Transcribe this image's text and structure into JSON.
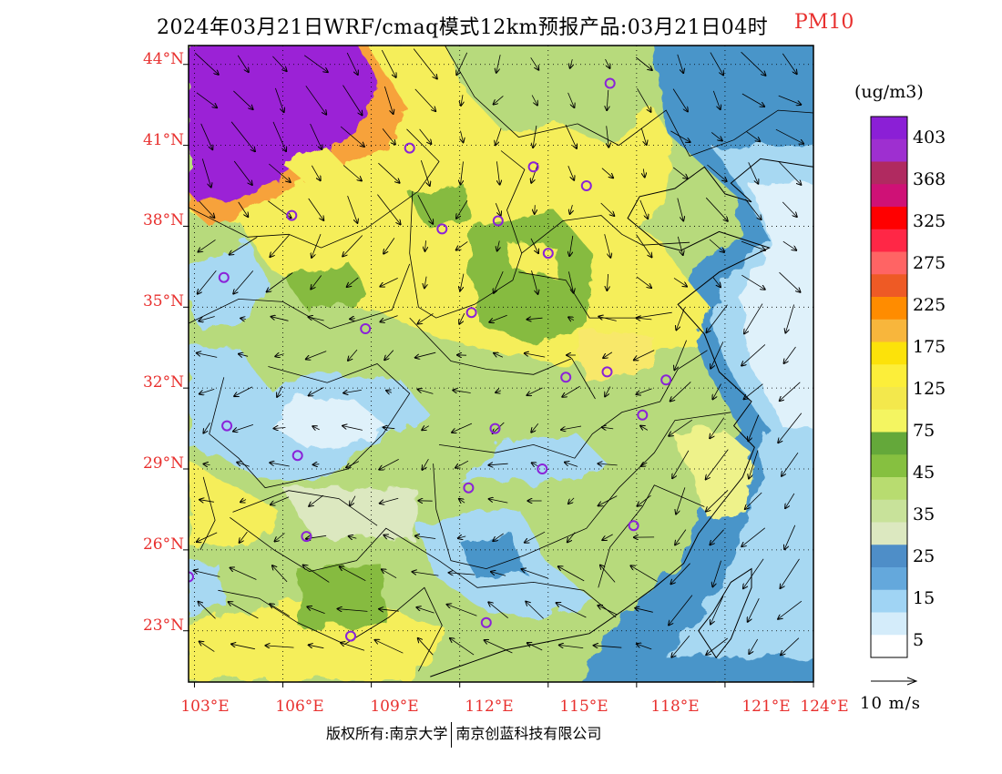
{
  "title": {
    "main": "2024年03月21日WRF/cmaq模式12km预报产品:03月21日04时",
    "variable": "PM10"
  },
  "map": {
    "lat_labels": [
      "44°N",
      "41°N",
      "38°N",
      "35°N",
      "32°N",
      "29°N",
      "26°N",
      "23°N"
    ],
    "lon_labels": [
      "103°E",
      "106°E",
      "109°E",
      "112°E",
      "115°E",
      "118°E",
      "121°E",
      "124°E"
    ],
    "colors": {
      "ocean": "#dff1fa",
      "water_light": "#a7d8f2",
      "water_mid": "#4a95c9",
      "land_low": "#b7da7c",
      "land_mid": "#86bb41",
      "yellow": "#f5ee5a",
      "yellow_dark": "#f3e34e",
      "orange": "#f7a23a",
      "purple": "#9b22d6",
      "label_red": "#e8302e"
    }
  },
  "colorbar": {
    "unit": "(ug/m3)",
    "labels": [
      "403",
      "368",
      "325",
      "275",
      "225",
      "175",
      "125",
      "75",
      "45",
      "35",
      "25",
      "15",
      "5"
    ],
    "colors": [
      "#8b1fd6",
      "#9e2fd0",
      "#b02a60",
      "#cf1176",
      "#ff0000",
      "#ff2746",
      "#ff6464",
      "#ee5a25",
      "#ff8c00",
      "#f8b63c",
      "#fce20a",
      "#fcee3a",
      "#f3e84c",
      "#f4f561",
      "#64a83a",
      "#86c040",
      "#b8dc70",
      "#c8e29a",
      "#dce8c0",
      "#4e8ec8",
      "#64a8dc",
      "#a0d4f4",
      "#d4ecfa",
      "#ffffff"
    ]
  },
  "vector_key": {
    "label": "10 m/s"
  },
  "cities": [
    {
      "lon": 117.1,
      "lat": 43.3
    },
    {
      "lon": 110.3,
      "lat": 40.9
    },
    {
      "lon": 114.5,
      "lat": 40.2
    },
    {
      "lon": 116.3,
      "lat": 39.5
    },
    {
      "lon": 106.3,
      "lat": 38.4
    },
    {
      "lon": 111.4,
      "lat": 37.9
    },
    {
      "lon": 113.3,
      "lat": 38.2
    },
    {
      "lon": 115.0,
      "lat": 37.0
    },
    {
      "lon": 104.0,
      "lat": 36.1
    },
    {
      "lon": 112.4,
      "lat": 34.8
    },
    {
      "lon": 108.8,
      "lat": 34.2
    },
    {
      "lon": 115.6,
      "lat": 32.4
    },
    {
      "lon": 117.0,
      "lat": 32.6
    },
    {
      "lon": 119.0,
      "lat": 32.3
    },
    {
      "lon": 118.2,
      "lat": 31.0
    },
    {
      "lon": 104.1,
      "lat": 30.6
    },
    {
      "lon": 113.2,
      "lat": 30.5
    },
    {
      "lon": 106.5,
      "lat": 29.5
    },
    {
      "lon": 114.8,
      "lat": 29.0
    },
    {
      "lon": 112.3,
      "lat": 28.3
    },
    {
      "lon": 117.9,
      "lat": 26.9
    },
    {
      "lon": 106.8,
      "lat": 26.5
    },
    {
      "lon": 102.8,
      "lat": 25.0
    },
    {
      "lon": 112.9,
      "lat": 23.3
    },
    {
      "lon": 108.3,
      "lat": 22.8
    }
  ],
  "footer": {
    "left": "版权所有:南京大学",
    "right": "南京创蓝科技有限公司"
  }
}
